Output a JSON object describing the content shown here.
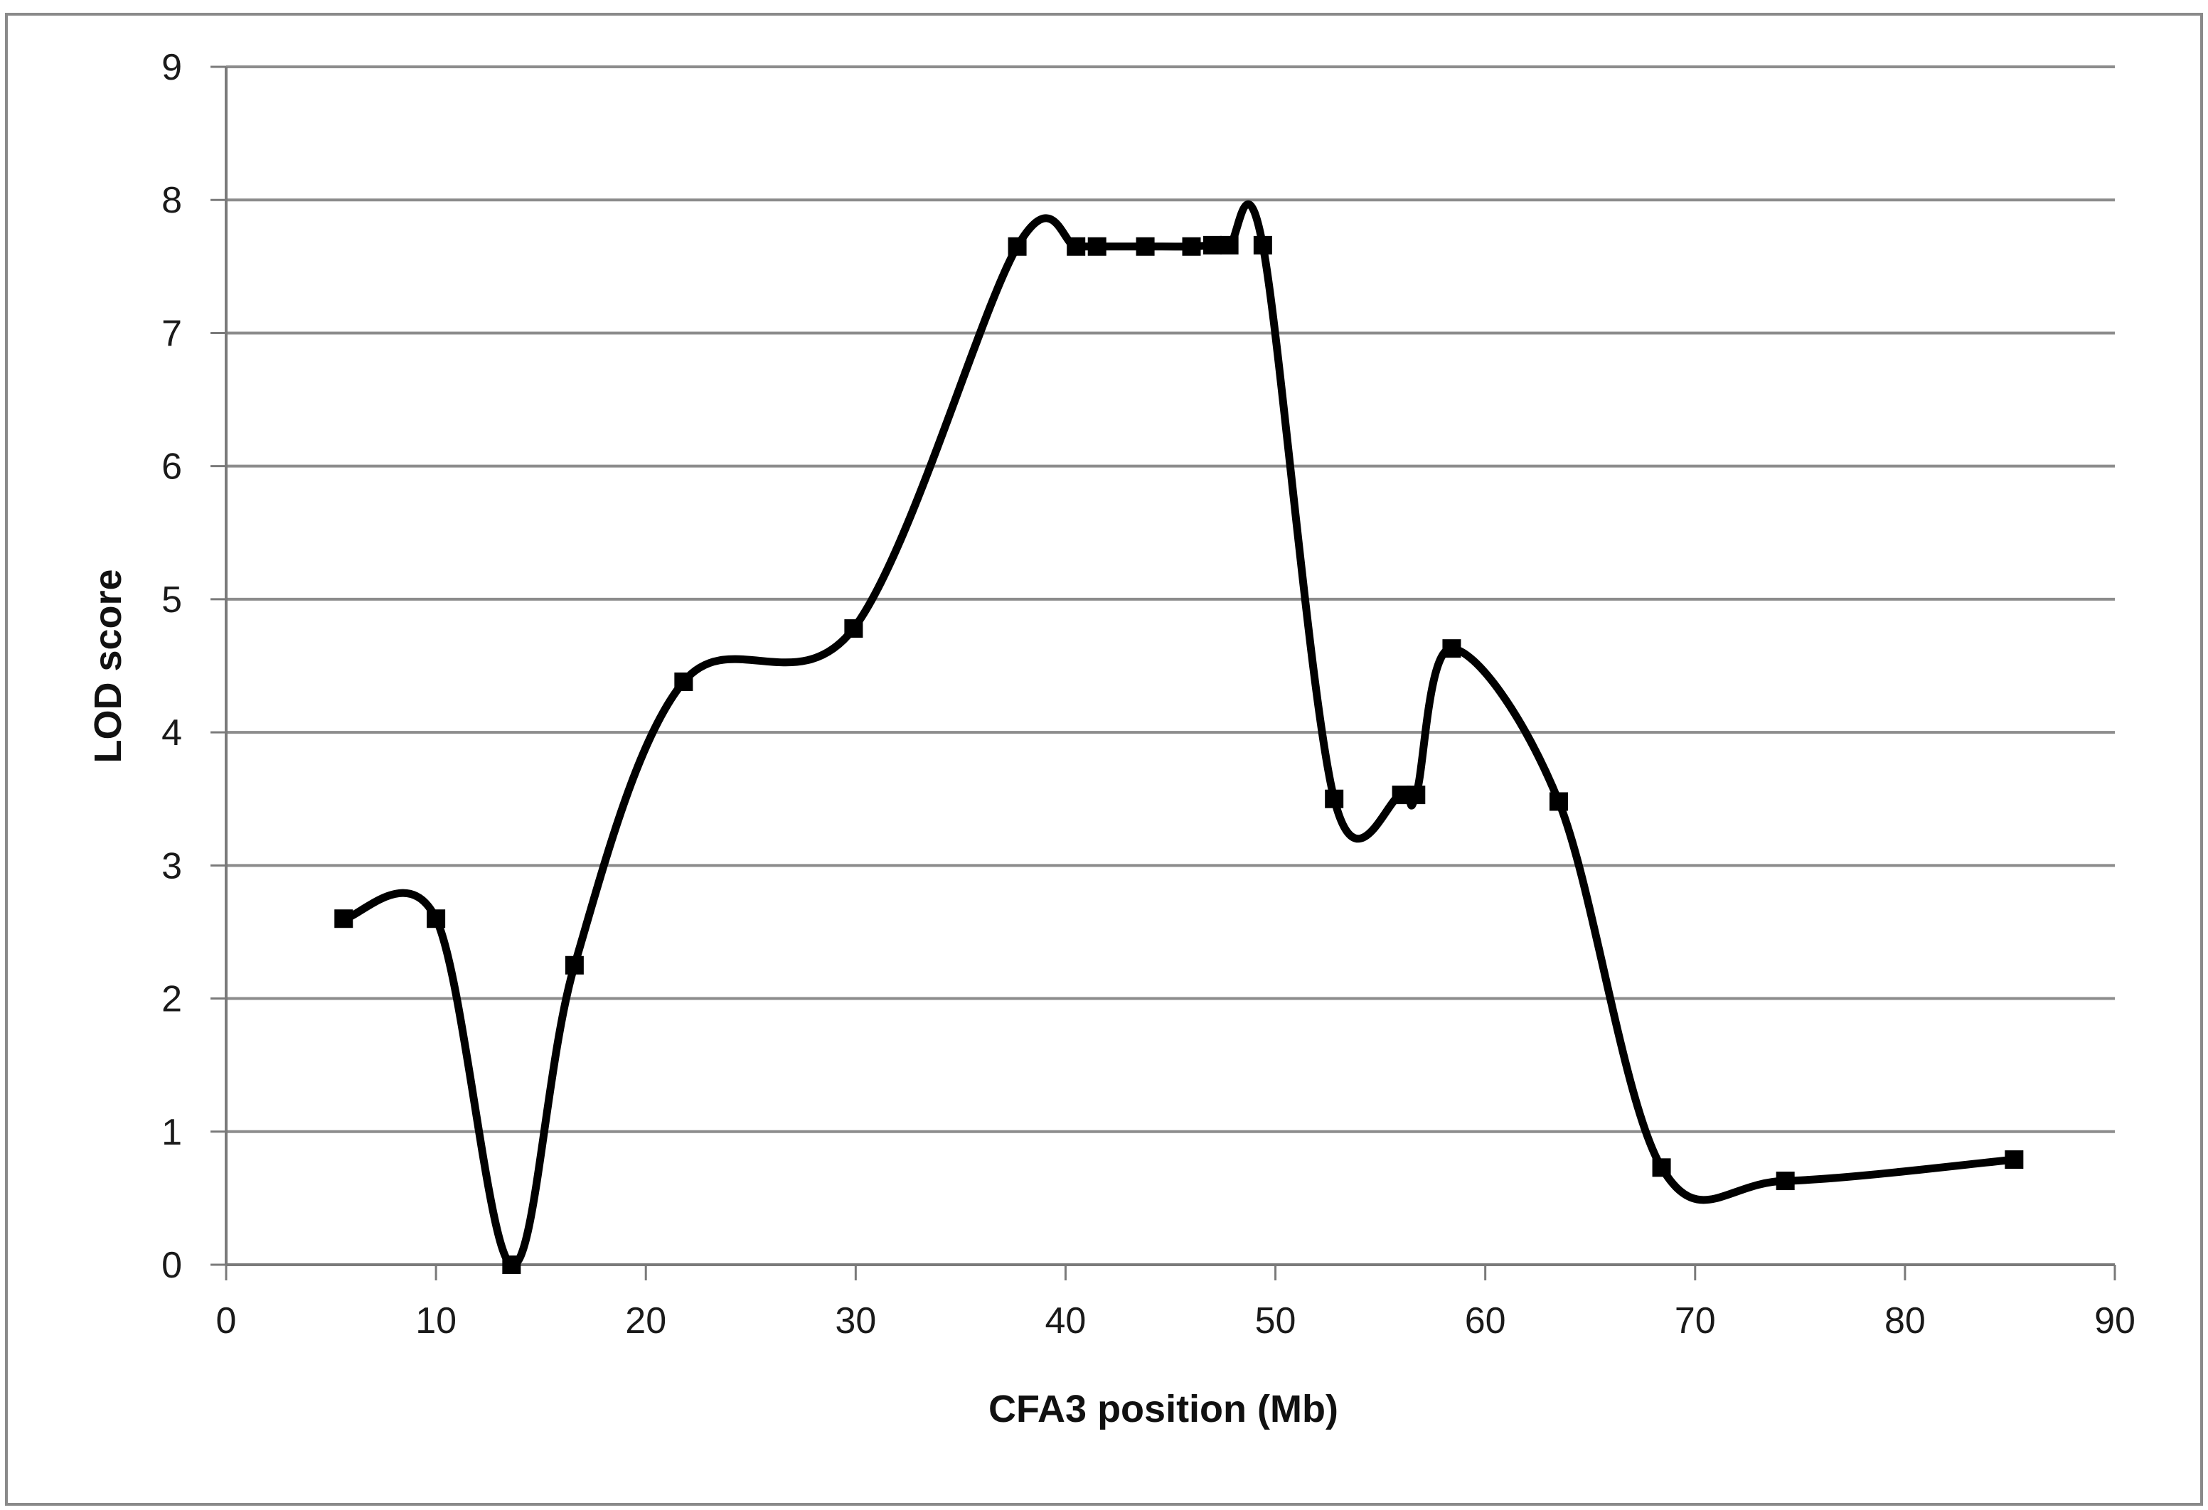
{
  "chart_data": {
    "type": "line",
    "title": "",
    "xlabel": "CFA3 position  (Mb)",
    "ylabel": "LOD score",
    "xlim": [
      0,
      90
    ],
    "ylim": [
      0,
      9
    ],
    "xticks": [
      "0",
      "10",
      "20",
      "30",
      "40",
      "50",
      "60",
      "70",
      "80",
      "90"
    ],
    "yticks": [
      "0",
      "1",
      "2",
      "3",
      "4",
      "5",
      "6",
      "7",
      "8",
      "9"
    ],
    "grid": "horizontal",
    "legend": "none",
    "smoothed": true,
    "marker": "square",
    "series": [
      {
        "color": "#000000",
        "x": [
          5.6,
          10.0,
          13.6,
          16.6,
          21.8,
          29.9,
          37.7,
          40.5,
          41.5,
          43.8,
          46.0,
          47.0,
          47.8,
          49.4,
          52.8,
          56.0,
          56.7,
          58.4,
          63.5,
          68.4,
          74.3,
          85.2
        ],
        "y": [
          2.6,
          2.6,
          0.0,
          2.25,
          4.38,
          4.78,
          7.65,
          7.65,
          7.65,
          7.65,
          7.65,
          7.66,
          7.66,
          7.66,
          3.5,
          3.53,
          3.53,
          4.63,
          3.48,
          0.73,
          0.63,
          0.79
        ]
      }
    ]
  }
}
